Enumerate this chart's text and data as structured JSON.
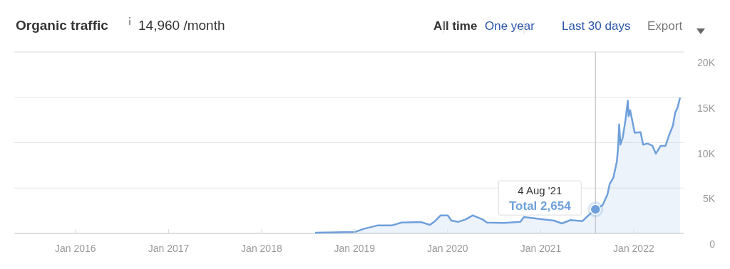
{
  "chart_data": {
    "type": "area",
    "title": "Organic traffic",
    "subtitle": "14,960 /month",
    "annotations": [
      "All time",
      "One year",
      "Last 30 days",
      "Export",
      "4 Aug '21",
      "Total 2,654"
    ],
    "x": [
      "2018-07-30",
      "2019-01-01",
      "2019-02-06",
      "2019-04-03",
      "2019-05-29",
      "2019-07-04",
      "2019-09-18",
      "2019-10-24",
      "2019-11-13",
      "2019-12-05",
      "2020-01-02",
      "2020-01-16",
      "2020-02-13",
      "2020-03-12",
      "2020-04-09",
      "2020-05-18",
      "2020-06-04",
      "2020-08-10",
      "2020-10-13",
      "2020-10-27",
      "2021-02-22",
      "2021-03-25",
      "2021-04-28",
      "2021-06-14",
      "2021-07-06",
      "2021-08-04",
      "2021-09-01",
      "2021-09-20",
      "2021-09-29",
      "2021-10-13",
      "2021-10-27",
      "2021-11-01",
      "2021-11-05",
      "2021-11-10",
      "2021-11-19",
      "2021-11-30",
      "2021-12-09",
      "2021-12-12",
      "2021-12-18",
      "2022-01-05",
      "2022-01-28",
      "2022-02-07",
      "2022-02-25",
      "2022-03-16",
      "2022-03-29",
      "2022-04-17",
      "2022-05-06",
      "2022-05-20",
      "2022-06-04",
      "2022-06-13",
      "2022-06-22",
      "2022-07-02"
    ],
    "series": [
      {
        "color": "#6fa0dc",
        "values": [
          80,
          150,
          500,
          890,
          890,
          1200,
          1250,
          940,
          1360,
          1990,
          1990,
          1410,
          1280,
          1540,
          1990,
          1540,
          1200,
          1150,
          1280,
          1800,
          1410,
          1100,
          1470,
          1360,
          1960,
          2654,
          3110,
          4290,
          5470,
          6120,
          7950,
          9520,
          12010,
          9790,
          10570,
          12540,
          14630,
          12930,
          13580,
          11090,
          11150,
          9790,
          9910,
          9650,
          8790,
          9650,
          9650,
          10830,
          11880,
          13320,
          13840,
          14960
        ]
      }
    ],
    "xlim": [
      "2015-05-06",
      "2022-07-19"
    ],
    "xticks": [
      {
        "value": "2016-01-01",
        "label": "Jan 2016"
      },
      {
        "value": "2017-01-01",
        "label": "Jan 2017"
      },
      {
        "value": "2018-01-01",
        "label": "Jan 2018"
      },
      {
        "value": "2019-01-01",
        "label": "Jan 2019"
      },
      {
        "value": "2020-01-01",
        "label": "Jan 2020"
      },
      {
        "value": "2021-01-01",
        "label": "Jan 2021"
      },
      {
        "value": "2022-01-01",
        "label": "Jan 2022"
      }
    ],
    "ylim": [
      0,
      20000
    ],
    "yticks": [
      0,
      {
        "value": 5000,
        "label": "5K"
      },
      {
        "value": 10000,
        "label": "10K"
      },
      {
        "value": 15000,
        "label": "15K"
      },
      {
        "value": 20000,
        "label": "20K"
      }
    ],
    "ref_lines": [
      {
        "axis": "x",
        "value": "2021-08-04",
        "color": "#bbbbbb"
      }
    ],
    "grid": "y"
  }
}
